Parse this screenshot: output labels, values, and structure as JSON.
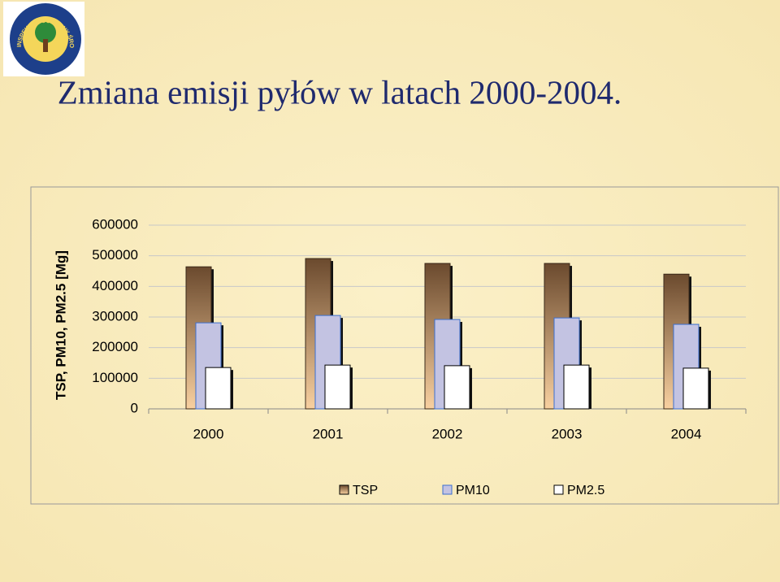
{
  "logo": {
    "text": "INSPEKCJA OCHRONY ŚRODOWISKA"
  },
  "chart_data": {
    "type": "bar",
    "title": "Zmiana emisji pyłów w latach 2000-2004.",
    "y_label": "TSP, PM10, PM2.5 [Mg]",
    "categories": [
      "2000",
      "2001",
      "2002",
      "2003",
      "2004"
    ],
    "series": [
      {
        "name": "TSP",
        "color": "#6b4a2e",
        "values": [
          464000,
          491000,
          475000,
          475000,
          440000
        ]
      },
      {
        "name": "PM10",
        "color": "#c3c3e2",
        "values": [
          281000,
          305000,
          292000,
          297000,
          276000
        ]
      },
      {
        "name": "PM2.5",
        "color": "#ffffff",
        "values": [
          135000,
          143000,
          141000,
          143000,
          133000
        ]
      }
    ],
    "ylim": [
      0,
      600000
    ],
    "yticks": [
      0,
      100000,
      200000,
      300000,
      400000,
      500000,
      600000
    ],
    "grid": true
  }
}
